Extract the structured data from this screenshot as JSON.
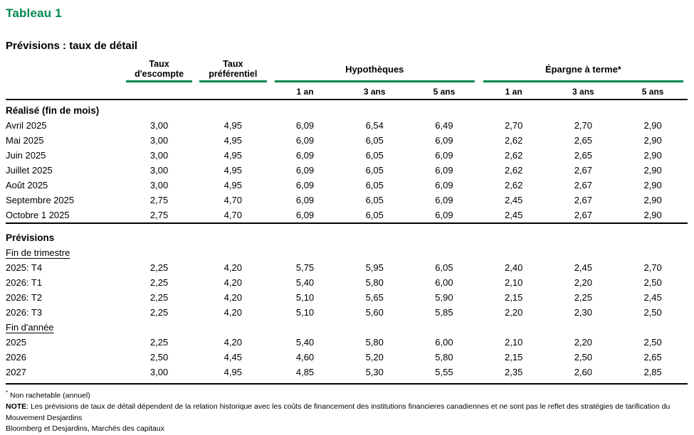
{
  "title": "Tableau 1",
  "subtitle": "Prévisions : taux de détail",
  "colors": {
    "accent_green": "#00874E",
    "rule_black": "#000000"
  },
  "table": {
    "header": {
      "rate_columns": [
        {
          "line1": "Taux",
          "line2": "d'escompte"
        },
        {
          "line1": "Taux",
          "line2": "préférentiel"
        }
      ],
      "groups": [
        {
          "label": "Hypothèques",
          "subcols": [
            "1 an",
            "3 ans",
            "5 ans"
          ]
        },
        {
          "label": "Épargne à terme*",
          "subcols": [
            "1 an",
            "3 ans",
            "5 ans"
          ]
        }
      ]
    },
    "sections": [
      {
        "heading": "Réalisé (fin de mois)",
        "groups": [
          {
            "subheading": null,
            "rows": [
              {
                "label": "Avril 2025",
                "values": [
                  "3,00",
                  "4,95",
                  "6,09",
                  "6,54",
                  "6,49",
                  "2,70",
                  "2,70",
                  "2,90"
                ]
              },
              {
                "label": "Mai 2025",
                "values": [
                  "3,00",
                  "4,95",
                  "6,09",
                  "6,05",
                  "6,09",
                  "2,62",
                  "2,65",
                  "2,90"
                ]
              },
              {
                "label": "Juin 2025",
                "values": [
                  "3,00",
                  "4,95",
                  "6,09",
                  "6,05",
                  "6,09",
                  "2,62",
                  "2,65",
                  "2,90"
                ]
              },
              {
                "label": "Juillet 2025",
                "values": [
                  "3,00",
                  "4,95",
                  "6,09",
                  "6,05",
                  "6,09",
                  "2,62",
                  "2,67",
                  "2,90"
                ]
              },
              {
                "label": "Août 2025",
                "values": [
                  "3,00",
                  "4,95",
                  "6,09",
                  "6,05",
                  "6,09",
                  "2,62",
                  "2,67",
                  "2,90"
                ]
              },
              {
                "label": "Septembre 2025",
                "values": [
                  "2,75",
                  "4,70",
                  "6,09",
                  "6,05",
                  "6,09",
                  "2,45",
                  "2,67",
                  "2,90"
                ]
              },
              {
                "label": "Octobre 1 2025",
                "values": [
                  "2,75",
                  "4,70",
                  "6,09",
                  "6,05",
                  "6,09",
                  "2,45",
                  "2,67",
                  "2,90"
                ]
              }
            ]
          }
        ]
      },
      {
        "heading": "Prévisions",
        "groups": [
          {
            "subheading": "Fin de trimestre",
            "rows": [
              {
                "label": "2025: T4",
                "values": [
                  "2,25",
                  "4,20",
                  "5,75",
                  "5,95",
                  "6,05",
                  "2,40",
                  "2,45",
                  "2,70"
                ]
              },
              {
                "label": "2026: T1",
                "values": [
                  "2,25",
                  "4,20",
                  "5,40",
                  "5,80",
                  "6,00",
                  "2,10",
                  "2,20",
                  "2,50"
                ]
              },
              {
                "label": "2026: T2",
                "values": [
                  "2,25",
                  "4,20",
                  "5,10",
                  "5,65",
                  "5,90",
                  "2,15",
                  "2,25",
                  "2,45"
                ]
              },
              {
                "label": "2026: T3",
                "values": [
                  "2,25",
                  "4,20",
                  "5,10",
                  "5,60",
                  "5,85",
                  "2,20",
                  "2,30",
                  "2,50"
                ]
              }
            ]
          },
          {
            "subheading": "Fin d'année",
            "rows": [
              {
                "label": "2025",
                "values": [
                  "2,25",
                  "4,20",
                  "5,40",
                  "5,80",
                  "6,00",
                  "2,10",
                  "2,20",
                  "2,50"
                ]
              },
              {
                "label": "2026",
                "values": [
                  "2,50",
                  "4,45",
                  "4,60",
                  "5,20",
                  "5,80",
                  "2,15",
                  "2,50",
                  "2,65"
                ]
              },
              {
                "label": "2027",
                "values": [
                  "3,00",
                  "4,95",
                  "4,85",
                  "5,30",
                  "5,55",
                  "2,35",
                  "2,60",
                  "2,85"
                ]
              }
            ]
          }
        ]
      }
    ]
  },
  "footnotes": {
    "asterisk": "*",
    "asterisk_note": "Non rachetable (annuel)",
    "note_label": "NOTE",
    "note_text": ": Les prévisions de taux de détail dépendent de la relation historique avec les coûts de financement des institutions financieres canadiennes et ne sont pas le reflet des stratégies de tarification du Mouvement Desjardins",
    "source": "Bloomberg et Desjardins, Marchés des capitaux"
  }
}
